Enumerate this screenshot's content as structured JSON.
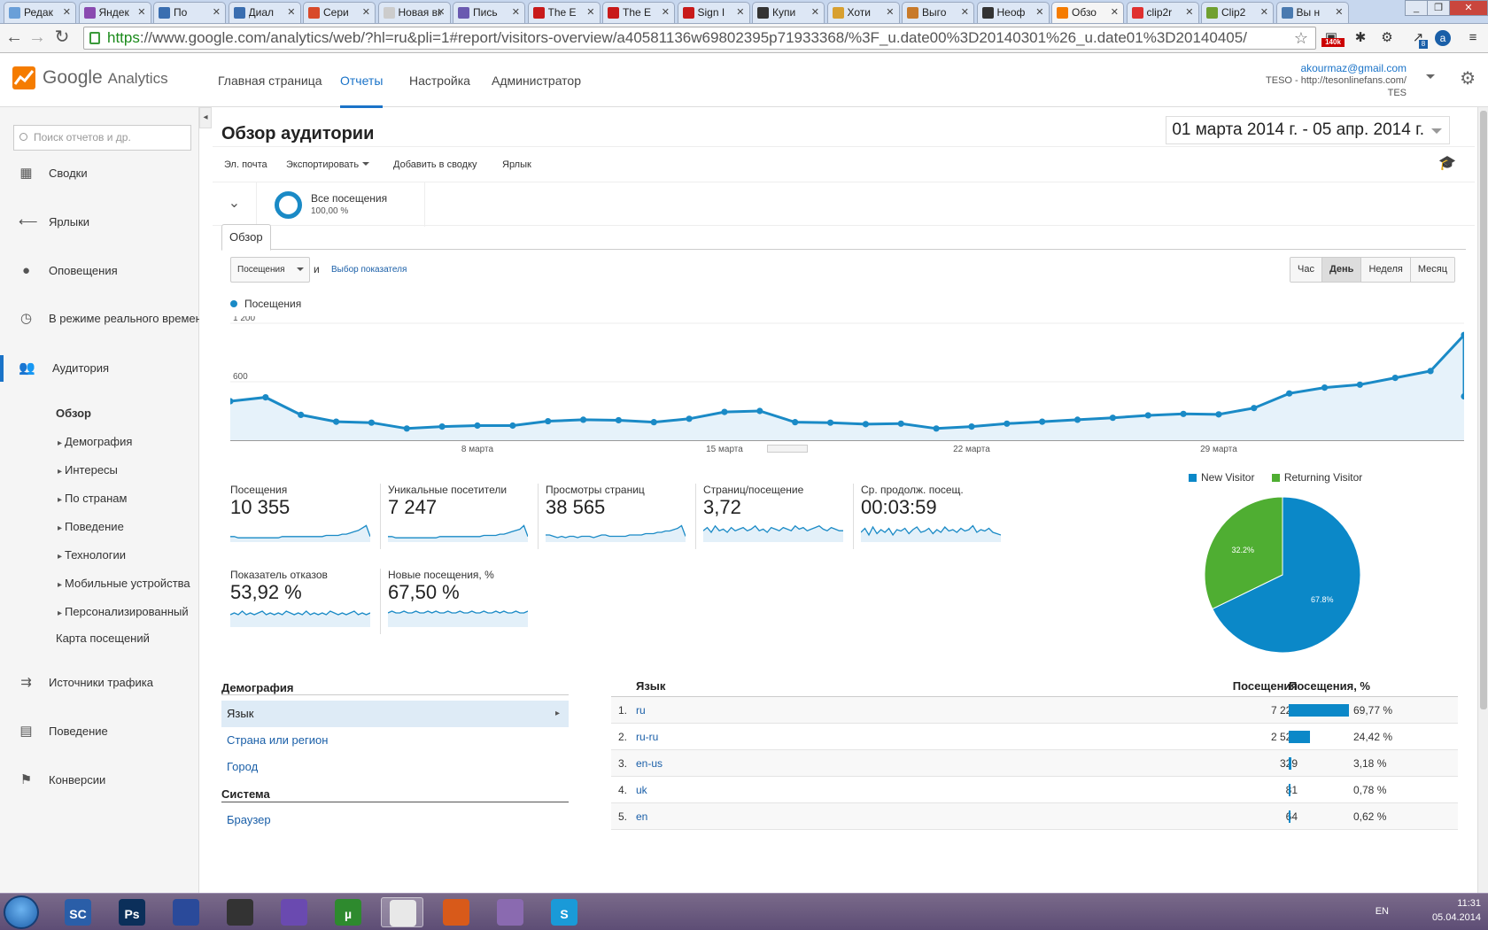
{
  "browser": {
    "tabs": [
      {
        "label": "Редак",
        "color": "#6a9fd8"
      },
      {
        "label": "Яндек",
        "color": "#8a4ab0"
      },
      {
        "label": "По",
        "color": "#3a6eb0"
      },
      {
        "label": "Диал",
        "color": "#3a6eb0"
      },
      {
        "label": "Сери",
        "color": "#d84a2a"
      },
      {
        "label": "Новая вк",
        "color": "#cccccc"
      },
      {
        "label": "Пись",
        "color": "#6a5ab0"
      },
      {
        "label": "The E",
        "color": "#c81a1a"
      },
      {
        "label": "The E",
        "color": "#c81a1a"
      },
      {
        "label": "Sign I",
        "color": "#c81a1a"
      },
      {
        "label": "Купи",
        "color": "#333333"
      },
      {
        "label": "Хоти",
        "color": "#d8a030"
      },
      {
        "label": "Выго",
        "color": "#c87a2a"
      },
      {
        "label": "Неоф",
        "color": "#333333"
      },
      {
        "label": "Обзо",
        "color": "#f57c00"
      },
      {
        "label": "clip2r",
        "color": "#e03030"
      },
      {
        "label": "Clip2",
        "color": "#70a030"
      },
      {
        "label": "Вы н",
        "color": "#4a7ab0"
      }
    ],
    "url_https": "https",
    "url_rest": "://www.google.com/analytics/web/?hl=ru&pli=1#report/visitors-overview/a40581136w69802395p71933368/%3F_u.date00%3D20140301%26_u.date01%3D20140405/",
    "badge_140k": "140k",
    "badge_8": "8"
  },
  "ga": {
    "logo_google": "Google",
    "logo_analytics": "Analytics",
    "nav": [
      "Главная страница",
      "Отчеты",
      "Настройка",
      "Администратор"
    ],
    "account_email": "akourmaz@gmail.com",
    "account_site": "TESO - http://tesonlinefans.com/",
    "account_view": "TES"
  },
  "sidebar": {
    "search_placeholder": "Поиск отчетов и др.",
    "items": [
      "Сводки",
      "Ярлыки",
      "Оповещения",
      "В режиме реального времени",
      "Аудитория",
      "Источники трафика",
      "Поведение",
      "Конверсии"
    ],
    "audience_sub": [
      "Обзор",
      "Демография",
      "Интересы",
      "По странам",
      "Поведение",
      "Технологии",
      "Мобильные устройства",
      "Персонализированный",
      "Карта посещений"
    ]
  },
  "report": {
    "title": "Обзор аудитории",
    "date_range": "01 марта 2014 г. - 05 апр. 2014 г.",
    "actions": [
      "Эл. почта",
      "Экспортировать",
      "Добавить в сводку",
      "Ярлык"
    ],
    "segment_name": "Все посещения",
    "segment_pct": "100,00 %",
    "tab_overview": "Обзор",
    "metric_select": "Посещения",
    "and_text": "и",
    "choose_metric": "Выбор показателя",
    "granularity": [
      "Час",
      "День",
      "Неделя",
      "Месяц"
    ],
    "granularity_selected": "День"
  },
  "chart_data": [
    {
      "type": "line",
      "series": [
        {
          "name": "Посещения",
          "color": "#1a8ac6",
          "values": [
            400,
            440,
            260,
            190,
            180,
            120,
            140,
            150,
            150,
            195,
            210,
            205,
            185,
            220,
            290,
            300,
            185,
            180,
            165,
            170,
            120,
            140,
            170,
            190,
            210,
            230,
            255,
            270,
            265,
            330,
            480,
            540,
            570,
            640,
            710,
            1080,
            450
          ]
        }
      ],
      "x_start": "01 марта 2014",
      "x_end": "05 апр. 2014",
      "x_ticks": [
        "8 марта",
        "15 марта",
        "22 марта",
        "29 марта"
      ],
      "y_ticks": [
        "600",
        "1 200"
      ],
      "ylim": [
        0,
        1200
      ]
    },
    {
      "type": "pie",
      "categories": [
        "New Visitor",
        "Returning Visitor"
      ],
      "values": [
        67.8,
        32.2
      ],
      "labels": [
        "67.8%",
        "32.2%"
      ],
      "colors": [
        "#0b88c8",
        "#4fae32"
      ]
    }
  ],
  "kpis": [
    {
      "label": "Посещения",
      "value": "10 355",
      "spark": [
        3,
        3,
        2,
        2,
        2,
        2,
        2,
        2,
        2,
        2,
        2,
        2,
        2,
        3,
        3,
        3,
        3,
        3,
        3,
        3,
        3,
        3,
        3,
        3,
        4,
        4,
        4,
        4,
        5,
        5,
        6,
        7,
        8,
        10,
        12,
        3
      ]
    },
    {
      "label": "Уникальные посетители",
      "value": "7 247",
      "spark": [
        3,
        3,
        2,
        2,
        2,
        2,
        2,
        2,
        2,
        2,
        2,
        2,
        2,
        3,
        3,
        3,
        3,
        3,
        3,
        3,
        3,
        3,
        3,
        3,
        4,
        4,
        4,
        4,
        5,
        5,
        6,
        7,
        8,
        9,
        12,
        3
      ]
    },
    {
      "label": "Просмотры страниц",
      "value": "38 565",
      "spark": [
        4,
        4,
        3,
        2,
        3,
        2,
        3,
        3,
        2,
        3,
        3,
        3,
        2,
        3,
        4,
        4,
        3,
        3,
        3,
        3,
        3,
        4,
        4,
        4,
        4,
        5,
        5,
        5,
        6,
        6,
        7,
        7,
        8,
        9,
        11,
        3
      ]
    },
    {
      "label": "Страниц/посещение",
      "value": "3,72",
      "spark": [
        6,
        8,
        5,
        9,
        6,
        7,
        5,
        8,
        6,
        7,
        8,
        6,
        7,
        9,
        6,
        7,
        5,
        8,
        7,
        6,
        8,
        7,
        6,
        9,
        7,
        8,
        6,
        7,
        8,
        9,
        7,
        6,
        8,
        7,
        6,
        6
      ]
    },
    {
      "label": "Ср. продолж. посещ.",
      "value": "00:03:59",
      "spark": [
        6,
        9,
        4,
        10,
        5,
        8,
        6,
        9,
        4,
        8,
        7,
        9,
        5,
        8,
        10,
        6,
        7,
        9,
        5,
        8,
        6,
        10,
        7,
        8,
        6,
        9,
        7,
        8,
        11,
        6,
        8,
        7,
        9,
        6,
        5,
        4
      ]
    },
    {
      "label": "Показатель отказов",
      "value": "53,92 %",
      "spark": [
        6,
        7,
        6,
        8,
        6,
        7,
        6,
        7,
        8,
        6,
        7,
        6,
        7,
        6,
        8,
        7,
        6,
        7,
        6,
        8,
        6,
        7,
        6,
        7,
        6,
        8,
        7,
        6,
        7,
        6,
        7,
        8,
        6,
        7,
        6,
        7
      ]
    },
    {
      "label": "Новые посещения, %",
      "value": "67,50 %",
      "spark": [
        7,
        8,
        7,
        7,
        8,
        7,
        7,
        8,
        7,
        7,
        8,
        7,
        8,
        7,
        7,
        8,
        7,
        7,
        8,
        7,
        7,
        8,
        7,
        7,
        8,
        7,
        7,
        8,
        7,
        8,
        7,
        7,
        8,
        7,
        7,
        8
      ]
    }
  ],
  "demographics": {
    "header": "Демография",
    "rows": [
      "Язык",
      "Страна или регион",
      "Город"
    ],
    "system_header": "Система",
    "system_rows": [
      "Браузер"
    ]
  },
  "language_table": {
    "col_name": "Язык",
    "col_visits": "Посещения",
    "col_pct": "Посещения, %",
    "rows": [
      {
        "idx": "1.",
        "name": "ru",
        "visits": "7 225",
        "pct": "69,77 %",
        "share": 69.77
      },
      {
        "idx": "2.",
        "name": "ru-ru",
        "visits": "2 529",
        "pct": "24,42 %",
        "share": 24.42
      },
      {
        "idx": "3.",
        "name": "en-us",
        "visits": "329",
        "pct": "3,18 %",
        "share": 3.18
      },
      {
        "idx": "4.",
        "name": "uk",
        "visits": "81",
        "pct": "0,78 %",
        "share": 0.78
      },
      {
        "idx": "5.",
        "name": "en",
        "visits": "64",
        "pct": "0,62 %",
        "share": 0.62
      }
    ]
  },
  "taskbar": {
    "apps": [
      "SC",
      "Ps",
      "",
      "",
      "",
      "µ",
      "",
      "",
      "",
      "S"
    ],
    "lang": "EN",
    "time": "11:31",
    "date": "05.04.2014"
  }
}
